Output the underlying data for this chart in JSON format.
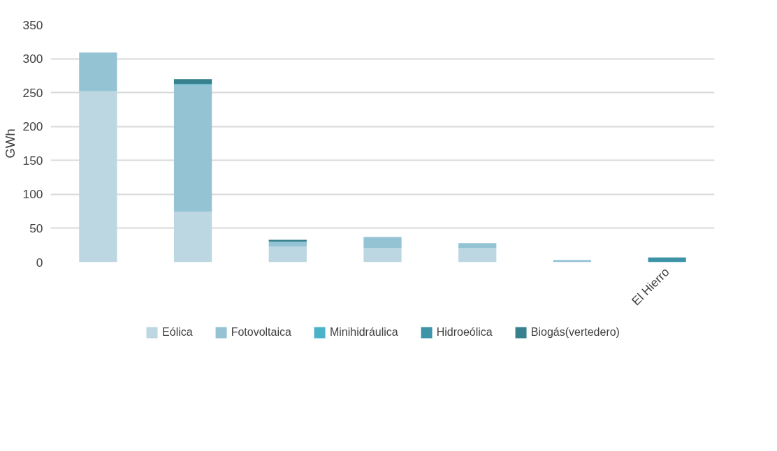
{
  "chart_data": {
    "type": "bar",
    "stacked": true,
    "ylabel": "GWh",
    "categories": [
      null,
      null,
      null,
      null,
      null,
      null,
      "El Hierro"
    ],
    "series": [
      {
        "name": "Eólica",
        "color": "#bcd7e2",
        "values": [
          252,
          74,
          23,
          21,
          21,
          0,
          0
        ]
      },
      {
        "name": "Fotovoltaica",
        "color": "#94c3d4",
        "values": [
          57,
          188,
          7,
          16,
          7,
          3,
          0
        ]
      },
      {
        "name": "Minihidráulica",
        "color": "#4bb3c9",
        "values": [
          0,
          1,
          0,
          0,
          0,
          0,
          0
        ]
      },
      {
        "name": "Hidroeólica",
        "color": "#3d93a8",
        "values": [
          0,
          0,
          0,
          0,
          0,
          0,
          7
        ]
      },
      {
        "name": "Biogás(vertedero)",
        "color": "#37818f",
        "values": [
          0,
          7,
          3,
          0,
          0,
          0,
          0
        ]
      }
    ],
    "ylim": [
      0,
      350
    ],
    "yticks": [
      0,
      50,
      100,
      150,
      200,
      250,
      300,
      350
    ],
    "grid": "y",
    "legend": "bottom"
  }
}
